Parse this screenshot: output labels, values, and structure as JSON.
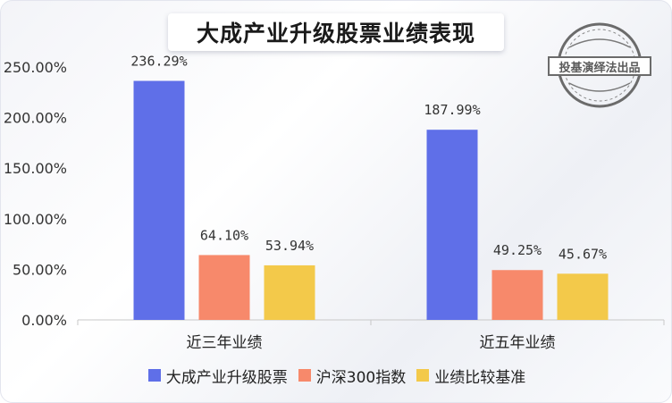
{
  "chart_data": {
    "type": "bar",
    "title": "大成产业升级股票业绩表现",
    "categories": [
      "近三年业绩",
      "近五年业绩"
    ],
    "series": [
      {
        "name": "大成产业升级股票",
        "values": [
          236.29,
          187.99
        ],
        "labels": [
          "236.29%",
          "187.99%"
        ],
        "color": "#5f6fe8"
      },
      {
        "name": "沪深300指数",
        "values": [
          64.1,
          49.25
        ],
        "labels": [
          "64.10%",
          "49.25%"
        ],
        "color": "#f7896b"
      },
      {
        "name": "业绩比较基准",
        "values": [
          53.94,
          45.67
        ],
        "labels": [
          "53.94%",
          "45.67%"
        ],
        "color": "#f3c94a"
      }
    ],
    "y_ticks": [
      "0.00%",
      "50.00%",
      "100.00%",
      "150.00%",
      "200.00%",
      "250.00%"
    ],
    "ylim": [
      0,
      250
    ],
    "grid": false,
    "legend_position": "bottom"
  },
  "watermark": {
    "text": "投基演绎法出品"
  }
}
